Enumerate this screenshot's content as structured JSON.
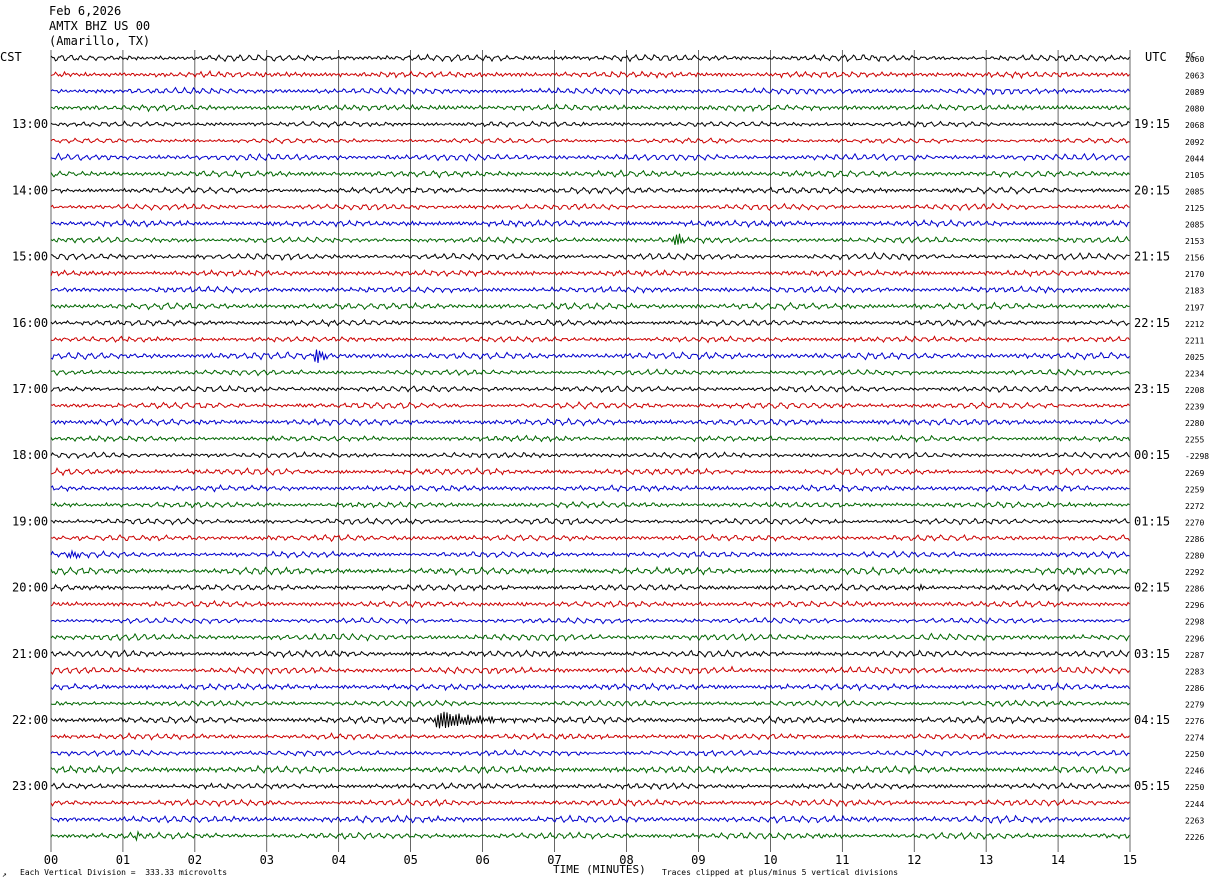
{
  "header": {
    "date": "Feb 6,2026",
    "station": "AMTX BHZ US 00",
    "location": "(Amarillo, TX)"
  },
  "left_axis_label": "CST",
  "right_axis_label": "UTC",
  "dc_label": "DC",
  "footer": {
    "scale_note": "Each Vertical Division =  333.33 microvolts",
    "clip_note": "Traces clipped at plus/minus 5 vertical divisions",
    "corner_mark": "↗"
  },
  "colors": {
    "trace_cycle": [
      "#000000",
      "#cc0000",
      "#0000cc",
      "#006600"
    ],
    "grid": "#000000"
  },
  "chart_data": {
    "type": "line",
    "subtype": "helicorder",
    "xlabel": "TIME (MINUTES)",
    "x_ticks": [
      "00",
      "01",
      "02",
      "03",
      "04",
      "05",
      "06",
      "07",
      "08",
      "09",
      "10",
      "11",
      "12",
      "13",
      "14",
      "15"
    ],
    "xlim": [
      0,
      15
    ],
    "left_hour_labels": [
      "13:00",
      "14:00",
      "15:00",
      "16:00",
      "17:00",
      "18:00",
      "19:00",
      "20:00",
      "21:00",
      "22:00",
      "23:00"
    ],
    "right_hour_labels": [
      "19:15",
      "20:15",
      "21:15",
      "22:15",
      "23:15",
      "00:15",
      "01:15",
      "02:15",
      "03:15",
      "04:15",
      "05:15"
    ],
    "hour_label_start_row": 4,
    "rows_per_hour": 4,
    "row_count": 48,
    "dc_offsets": [
      "2060",
      "2063",
      "2089",
      "2080",
      "2068",
      "2092",
      "2044",
      "2105",
      "2085",
      "2125",
      "2085",
      "2153",
      "2156",
      "2170",
      "2183",
      "2197",
      "2212",
      "2211",
      "2025",
      "2234",
      "2208",
      "2239",
      "2280",
      "2255",
      "-2298",
      "2269",
      "2259",
      "2272",
      "2270",
      "2286",
      "2280",
      "2292",
      "2286",
      "2296",
      "2298",
      "2296",
      "2287",
      "2283",
      "2286",
      "2279",
      "2276",
      "2274",
      "2250",
      "2246",
      "2250",
      "2244",
      "2263",
      "2226"
    ],
    "events": [
      {
        "row": 11,
        "minute": 8.7,
        "amplitude": 2.2
      },
      {
        "row": 18,
        "minute": 3.7,
        "amplitude": 2.4
      },
      {
        "row": 30,
        "minute": 0.3,
        "amplitude": 1.2
      },
      {
        "row": 31,
        "minute": 8.5,
        "amplitude": 1.6
      },
      {
        "row": 32,
        "minute": 13.9,
        "amplitude": 2.6
      },
      {
        "row": 32,
        "minute": 12.1,
        "amplitude": 1.1
      },
      {
        "row": 37,
        "minute": 9.4,
        "amplitude": 1.5
      },
      {
        "row": 40,
        "minute": 5.4,
        "amplitude": 2.4,
        "duration": 1.4
      },
      {
        "row": 47,
        "minute": 1.2,
        "amplitude": 1.3
      }
    ]
  }
}
